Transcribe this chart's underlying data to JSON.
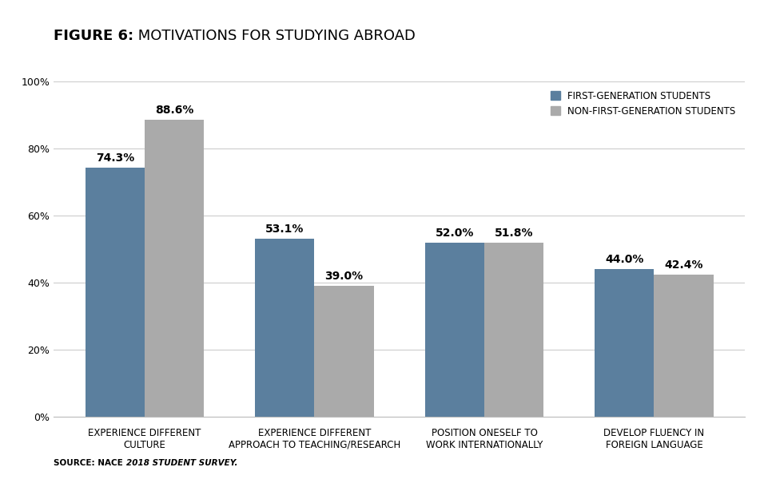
{
  "title_bold": "FIGURE 6:",
  "title_regular": " MOTIVATIONS FOR STUDYING ABROAD",
  "categories": [
    "EXPERIENCE DIFFERENT\nCULTURE",
    "EXPERIENCE DIFFERENT\nAPPROACH TO TEACHING/RESEARCH",
    "POSITION ONESELF TO\nWORK INTERNATIONALLY",
    "DEVELOP FLUENCY IN\nFOREIGN LANGUAGE"
  ],
  "first_gen": [
    74.3,
    53.1,
    52.0,
    44.0
  ],
  "non_first_gen": [
    88.6,
    39.0,
    51.8,
    42.4
  ],
  "first_gen_color": "#5b7f9e",
  "non_first_gen_color": "#aaaaaa",
  "bar_width": 0.35,
  "ylim": [
    0,
    100
  ],
  "yticks": [
    0,
    20,
    40,
    60,
    80,
    100
  ],
  "ytick_labels": [
    "0%",
    "20%",
    "40%",
    "60%",
    "80%",
    "100%"
  ],
  "legend_label_1": "FIRST-GENERATION STUDENTS",
  "legend_label_2": "NON-FIRST-GENERATION STUDENTS",
  "source_bold": "SOURCE: NACE ",
  "source_italic": "2018 STUDENT SURVEY.",
  "background_color": "#ffffff",
  "grid_color": "#cccccc",
  "label_fontsize": 8.5,
  "tick_label_fontsize": 9,
  "title_fontsize": 13,
  "bar_label_fontsize": 10,
  "legend_fontsize": 8.5,
  "source_fontsize": 7.5
}
